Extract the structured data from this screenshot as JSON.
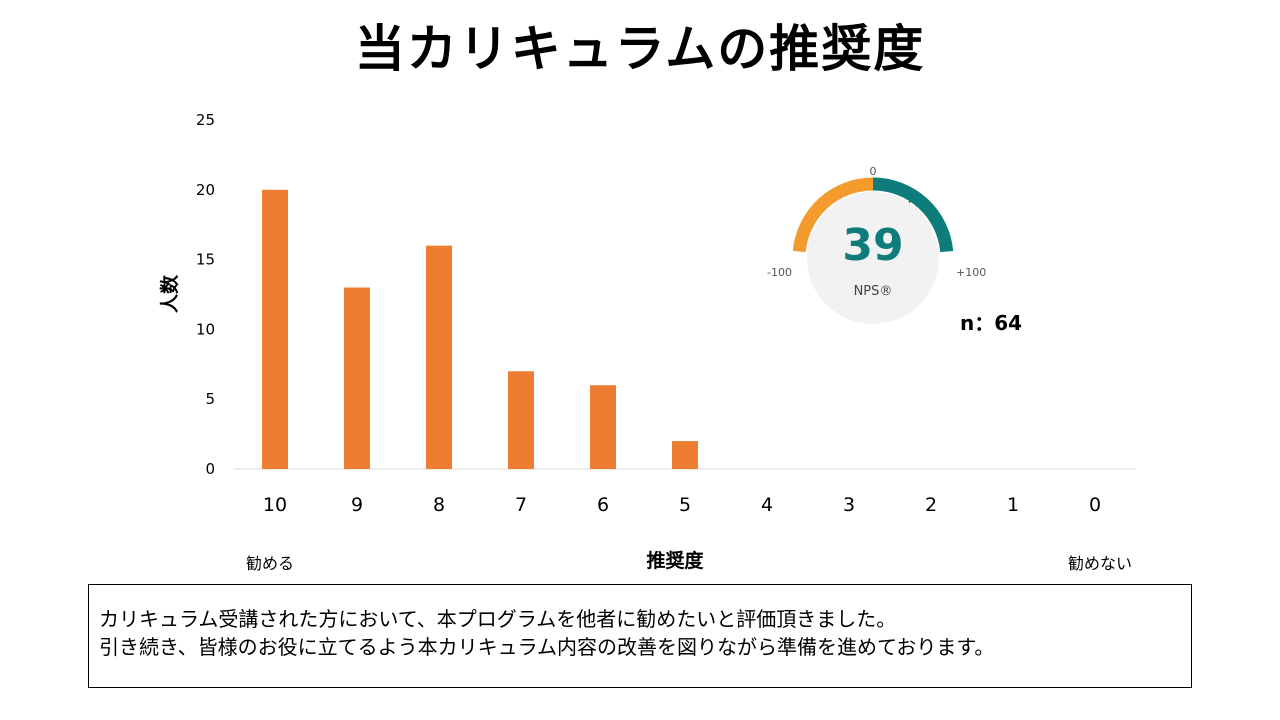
{
  "chart_data": {
    "type": "bar",
    "title": "当カリキュラムの推奨度",
    "xlabel": "推奨度",
    "ylabel": "人数",
    "categories": [
      "10",
      "9",
      "8",
      "7",
      "6",
      "5",
      "4",
      "3",
      "2",
      "1",
      "0"
    ],
    "values": [
      20,
      13,
      16,
      7,
      6,
      2,
      0,
      0,
      0,
      0,
      0
    ],
    "yticks": [
      0,
      5,
      10,
      15,
      20,
      25
    ],
    "ylim": [
      0,
      25
    ],
    "grid": false,
    "bar_color": "#ED7D31",
    "x_left_end_label": "勧める",
    "x_right_end_label": "勧めない"
  },
  "gauge": {
    "value": "39",
    "label": "NPS®",
    "min_label": "-100",
    "mid_label": "0",
    "max_label": "+100",
    "nps_value": 39,
    "range": [
      -100,
      100
    ],
    "negative_color": "#F39C2D",
    "positive_color": "#0E7C7B",
    "center_color": "#F2F2F2"
  },
  "sample": {
    "label": "n：64"
  },
  "note": {
    "line1": "カリキュラム受講された方において、本プログラムを他者に勧めたいと評価頂きました。",
    "line2": "引き続き、皆様のお役に立てるよう本カリキュラム内容の改善を図りながら準備を進めております。"
  }
}
